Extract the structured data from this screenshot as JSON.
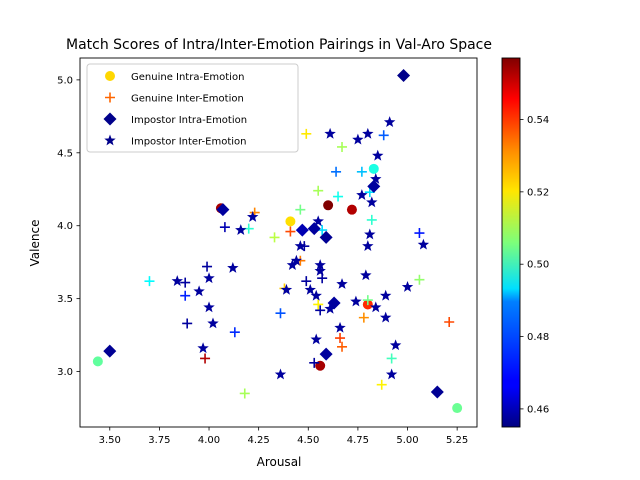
{
  "chart_data": {
    "type": "scatter",
    "title": "Match Scores of Intra/Inter-Emotion Pairings in Val-Aro Space",
    "xlabel": "Arousal",
    "ylabel": "Valence",
    "xlim": [
      3.35,
      5.35
    ],
    "ylim": [
      2.62,
      5.15
    ],
    "x_ticks": [
      3.5,
      3.75,
      4.0,
      4.25,
      4.5,
      4.75,
      5.0,
      5.25
    ],
    "x_tick_labels": [
      "3.50",
      "3.75",
      "4.00",
      "4.25",
      "4.50",
      "4.75",
      "5.00",
      "5.25"
    ],
    "y_ticks": [
      3.0,
      3.5,
      4.0,
      4.5,
      5.0
    ],
    "y_tick_labels": [
      "3.0",
      "3.5",
      "4.0",
      "4.5",
      "5.0"
    ],
    "colormap": "jet",
    "colorbar": {
      "range": [
        0.455,
        0.557
      ],
      "ticks": [
        0.46,
        0.48,
        0.5,
        0.52,
        0.54
      ],
      "tick_labels": [
        "0.46",
        "0.48",
        "0.50",
        "0.52",
        "0.54"
      ]
    },
    "legend_position": "upper-left",
    "series": [
      {
        "name": "Genuine Intra-Emotion",
        "marker": "circle",
        "legend_color": "#ffd700",
        "points": [
          [
            4.06,
            4.12,
            0.553
          ],
          [
            4.41,
            4.03,
            0.522
          ],
          [
            4.6,
            4.14,
            0.557
          ],
          [
            4.72,
            4.11,
            0.552
          ],
          [
            4.8,
            3.46,
            0.54
          ],
          [
            4.83,
            4.39,
            0.496
          ],
          [
            4.56,
            3.04,
            0.553
          ],
          [
            3.44,
            3.07,
            0.503
          ],
          [
            5.25,
            2.75,
            0.504
          ]
        ]
      },
      {
        "name": "Genuine Inter-Emotion",
        "marker": "plus",
        "legend_color": "#ff6600",
        "points": [
          [
            4.49,
            4.63,
            0.521
          ],
          [
            4.41,
            3.96,
            0.537
          ],
          [
            4.23,
            4.09,
            0.531
          ],
          [
            4.2,
            3.98,
            0.498
          ],
          [
            4.33,
            3.92,
            0.512
          ],
          [
            4.46,
            4.11,
            0.505
          ],
          [
            4.55,
            4.24,
            0.51
          ],
          [
            4.57,
            3.97,
            0.49
          ],
          [
            4.65,
            4.2,
            0.495
          ],
          [
            4.67,
            4.54,
            0.51
          ],
          [
            4.64,
            4.37,
            0.479
          ],
          [
            4.77,
            4.37,
            0.487
          ],
          [
            4.81,
            4.23,
            0.49
          ],
          [
            4.82,
            4.04,
            0.498
          ],
          [
            4.88,
            4.62,
            0.477
          ],
          [
            3.7,
            3.62,
            0.493
          ],
          [
            3.88,
            3.52,
            0.471
          ],
          [
            4.36,
            3.4,
            0.476
          ],
          [
            4.38,
            3.57,
            0.524
          ],
          [
            4.46,
            3.76,
            0.532
          ],
          [
            4.55,
            3.46,
            0.52
          ],
          [
            4.66,
            3.23,
            0.538
          ],
          [
            4.67,
            3.17,
            0.535
          ],
          [
            4.78,
            3.37,
            0.53
          ],
          [
            4.8,
            3.49,
            0.505
          ],
          [
            4.87,
            2.91,
            0.52
          ],
          [
            4.92,
            3.09,
            0.5
          ],
          [
            5.06,
            3.63,
            0.508
          ],
          [
            5.06,
            3.95,
            0.47
          ],
          [
            5.21,
            3.34,
            0.537
          ],
          [
            4.18,
            2.85,
            0.51
          ],
          [
            4.13,
            3.27,
            0.472
          ],
          [
            3.98,
            3.09,
            0.552
          ]
        ]
      },
      {
        "name": "Impostor Intra-Emotion",
        "marker": "diamond",
        "legend_color": "#00008b",
        "points": [
          [
            4.07,
            4.11,
            0.458
          ],
          [
            4.47,
            3.97,
            0.46
          ],
          [
            4.53,
            3.98,
            0.458
          ],
          [
            4.59,
            3.92,
            0.457
          ],
          [
            4.83,
            4.27,
            0.458
          ],
          [
            4.98,
            5.03,
            0.456
          ],
          [
            4.63,
            3.47,
            0.458
          ],
          [
            4.59,
            3.12,
            0.458
          ],
          [
            3.5,
            3.14,
            0.457
          ],
          [
            5.15,
            2.86,
            0.457
          ]
        ]
      },
      {
        "name": "Impostor Inter-Emotion",
        "marker": "star",
        "legend_color": "#00008b",
        "points": [
          [
            4.22,
            4.06,
            0.458
          ],
          [
            4.16,
            3.97,
            0.458
          ],
          [
            4.12,
            3.71,
            0.458
          ],
          [
            4.42,
            3.73,
            0.458
          ],
          [
            4.46,
            3.86,
            0.458
          ],
          [
            4.55,
            4.03,
            0.458
          ],
          [
            4.61,
            4.63,
            0.458
          ],
          [
            4.75,
            4.59,
            0.458
          ],
          [
            4.8,
            4.63,
            0.458
          ],
          [
            4.85,
            4.48,
            0.458
          ],
          [
            4.91,
            4.71,
            0.458
          ],
          [
            4.77,
            4.21,
            0.458
          ],
          [
            4.82,
            4.16,
            0.458
          ],
          [
            4.84,
            4.32,
            0.458
          ],
          [
            4.81,
            3.94,
            0.458
          ],
          [
            4.8,
            3.86,
            0.458
          ],
          [
            4.79,
            3.66,
            0.458
          ],
          [
            4.56,
            3.73,
            0.458
          ],
          [
            4.56,
            3.69,
            0.458
          ],
          [
            4.67,
            3.6,
            0.458
          ],
          [
            4.74,
            3.48,
            0.458
          ],
          [
            4.84,
            3.44,
            0.458
          ],
          [
            4.89,
            3.52,
            0.458
          ],
          [
            4.89,
            3.37,
            0.458
          ],
          [
            4.92,
            2.98,
            0.458
          ],
          [
            4.94,
            3.18,
            0.458
          ],
          [
            5.0,
            3.58,
            0.458
          ],
          [
            5.08,
            3.87,
            0.458
          ],
          [
            4.61,
            3.43,
            0.458
          ],
          [
            4.54,
            3.52,
            0.458
          ],
          [
            4.54,
            3.22,
            0.458
          ],
          [
            4.66,
            3.3,
            0.458
          ],
          [
            4.51,
            3.56,
            0.458
          ],
          [
            4.39,
            3.56,
            0.458
          ],
          [
            4.36,
            2.98,
            0.458
          ],
          [
            3.84,
            3.62,
            0.458
          ],
          [
            3.95,
            3.55,
            0.458
          ],
          [
            4.0,
            3.64,
            0.458
          ],
          [
            4.0,
            3.44,
            0.458
          ],
          [
            4.02,
            3.33,
            0.458
          ],
          [
            3.97,
            3.16,
            0.458
          ],
          [
            4.44,
            3.76,
            0.458
          ]
        ]
      },
      {
        "name": "Impostor Inter-Emotion (dark crosses)",
        "marker": "plus",
        "legend_color": "#00008b",
        "in_legend": false,
        "points": [
          [
            3.88,
            3.61,
            0.458
          ],
          [
            3.99,
            3.72,
            0.458
          ],
          [
            3.89,
            3.33,
            0.458
          ],
          [
            4.08,
            3.99,
            0.46
          ],
          [
            4.48,
            3.86,
            0.458
          ],
          [
            4.49,
            3.62,
            0.458
          ],
          [
            4.56,
            3.42,
            0.458
          ],
          [
            4.57,
            3.64,
            0.458
          ],
          [
            4.53,
            3.06,
            0.458
          ]
        ]
      }
    ]
  }
}
